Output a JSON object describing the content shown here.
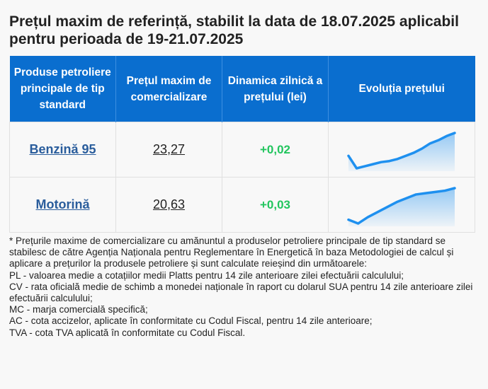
{
  "title": "Prețul maxim de referință, stabilit la data de 18.07.2025 aplicabil pentru perioada de 19-21.07.2025",
  "table": {
    "headers": [
      "Produse petroliere principale de tip standard",
      "Prețul maxim de comercializare",
      "Dinamica zilnică a prețului (lei)",
      "Evoluția prețului"
    ],
    "rows": [
      {
        "product": "Benzină 95",
        "price": "23,27",
        "delta": "+0,02",
        "trend": [
          23.05,
          22.93,
          22.95,
          22.97,
          22.99,
          23.0,
          23.02,
          23.05,
          23.08,
          23.12,
          23.17,
          23.2,
          23.24,
          23.27
        ]
      },
      {
        "product": "Motorină",
        "price": "20,63",
        "delta": "+0,03",
        "trend": [
          20.38,
          20.35,
          20.4,
          20.44,
          20.48,
          20.52,
          20.55,
          20.58,
          20.59,
          20.6,
          20.61,
          20.63
        ]
      }
    ]
  },
  "colors": {
    "header_bg": "#0a6ecf",
    "link": "#2a5d9c",
    "positive": "#22c55e",
    "sparkline": "#1e90ef"
  },
  "notes": [
    "* Prețurile maxime de comercializare cu amănuntul a produselor petroliere principale de tip standard se stabilesc de către Agenția Naționala pentru Reglementare în Energetică în baza Metodologiei de calcul și aplicare a prețurilor la produsele petroliere și sunt calculate reieșind din următoarele:",
    "PL - valoarea medie a cotațiilor medii Platts pentru 14 zile anterioare zilei efectuării calculului;",
    "CV - rata oficială medie de schimb a monedei naționale în raport cu dolarul SUA pentru 14 zile anterioare zilei efectuării calculului;",
    "MC - marja comercială specifică;",
    "AC - cota accizelor, aplicate în conformitate cu Codul Fiscal, pentru 14 zile anterioare;",
    "TVA - cota TVA aplicată în conformitate cu Codul Fiscal."
  ]
}
